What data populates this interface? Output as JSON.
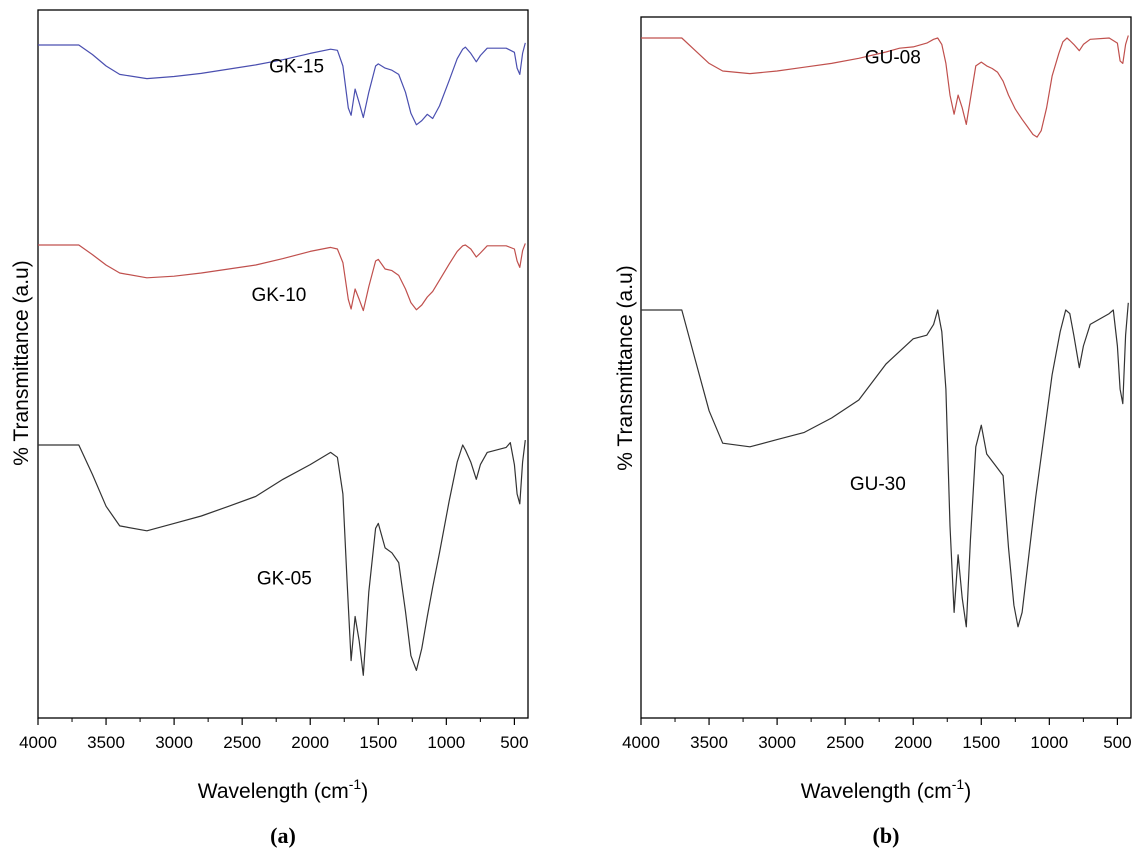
{
  "chart_data": [
    {
      "type": "line",
      "panel_label": "(a)",
      "xlabel": "Wavelength (cm",
      "xlabel_sup": "-1",
      "xlabel_suffix": ")",
      "ylabel": "% Transmittance (a.u)",
      "xlim": [
        4000,
        400
      ],
      "x_reversed": true,
      "xticks": [
        4000,
        3500,
        3000,
        2500,
        2000,
        1500,
        1000,
        500
      ],
      "yticks_shown": false,
      "grid": false,
      "colors": {
        "GK-15": "#4a4fb0",
        "GK-10": "#c0504d",
        "GK-05": "#333333"
      },
      "series": [
        {
          "name": "GK-15",
          "label": "GK-15",
          "color": "#4a4fb0",
          "label_at": [
            2100,
            0.74
          ],
          "points": [
            [
              4000,
              1.0
            ],
            [
              3700,
              1.0
            ],
            [
              3600,
              0.91
            ],
            [
              3500,
              0.8
            ],
            [
              3400,
              0.72
            ],
            [
              3200,
              0.68
            ],
            [
              3000,
              0.7
            ],
            [
              2800,
              0.73
            ],
            [
              2600,
              0.77
            ],
            [
              2400,
              0.81
            ],
            [
              2200,
              0.86
            ],
            [
              2000,
              0.92
            ],
            [
              1850,
              0.96
            ],
            [
              1800,
              0.95
            ],
            [
              1760,
              0.8
            ],
            [
              1720,
              0.4
            ],
            [
              1700,
              0.33
            ],
            [
              1670,
              0.58
            ],
            [
              1640,
              0.45
            ],
            [
              1610,
              0.31
            ],
            [
              1570,
              0.55
            ],
            [
              1520,
              0.8
            ],
            [
              1500,
              0.82
            ],
            [
              1450,
              0.78
            ],
            [
              1400,
              0.76
            ],
            [
              1350,
              0.72
            ],
            [
              1300,
              0.55
            ],
            [
              1260,
              0.35
            ],
            [
              1220,
              0.24
            ],
            [
              1180,
              0.28
            ],
            [
              1140,
              0.34
            ],
            [
              1100,
              0.3
            ],
            [
              1050,
              0.42
            ],
            [
              980,
              0.66
            ],
            [
              920,
              0.87
            ],
            [
              880,
              0.96
            ],
            [
              860,
              0.98
            ],
            [
              820,
              0.92
            ],
            [
              780,
              0.84
            ],
            [
              750,
              0.9
            ],
            [
              700,
              0.97
            ],
            [
              560,
              0.97
            ],
            [
              500,
              0.93
            ],
            [
              480,
              0.78
            ],
            [
              460,
              0.72
            ],
            [
              440,
              0.92
            ],
            [
              420,
              1.02
            ]
          ]
        },
        {
          "name": "GK-10",
          "label": "GK-10",
          "color": "#c0504d",
          "label_at": [
            2230,
            0.3
          ],
          "points": [
            [
              4000,
              1.0
            ],
            [
              3700,
              1.0
            ],
            [
              3600,
              0.88
            ],
            [
              3500,
              0.75
            ],
            [
              3400,
              0.65
            ],
            [
              3200,
              0.59
            ],
            [
              3000,
              0.61
            ],
            [
              2800,
              0.65
            ],
            [
              2600,
              0.7
            ],
            [
              2400,
              0.75
            ],
            [
              2200,
              0.83
            ],
            [
              2000,
              0.92
            ],
            [
              1850,
              0.97
            ],
            [
              1800,
              0.95
            ],
            [
              1760,
              0.78
            ],
            [
              1720,
              0.32
            ],
            [
              1700,
              0.2
            ],
            [
              1670,
              0.45
            ],
            [
              1640,
              0.32
            ],
            [
              1610,
              0.18
            ],
            [
              1570,
              0.48
            ],
            [
              1520,
              0.8
            ],
            [
              1500,
              0.82
            ],
            [
              1450,
              0.7
            ],
            [
              1400,
              0.68
            ],
            [
              1350,
              0.62
            ],
            [
              1300,
              0.45
            ],
            [
              1260,
              0.28
            ],
            [
              1220,
              0.19
            ],
            [
              1180,
              0.25
            ],
            [
              1140,
              0.35
            ],
            [
              1100,
              0.42
            ],
            [
              1050,
              0.56
            ],
            [
              980,
              0.76
            ],
            [
              920,
              0.92
            ],
            [
              880,
              0.99
            ],
            [
              860,
              1.0
            ],
            [
              820,
              0.95
            ],
            [
              780,
              0.85
            ],
            [
              750,
              0.9
            ],
            [
              700,
              0.99
            ],
            [
              560,
              0.99
            ],
            [
              500,
              0.95
            ],
            [
              480,
              0.8
            ],
            [
              460,
              0.72
            ],
            [
              440,
              0.93
            ],
            [
              420,
              1.02
            ]
          ]
        },
        {
          "name": "GK-05",
          "label": "GK-05",
          "color": "#333333",
          "label_at": [
            2190,
            0.43
          ],
          "points": [
            [
              4000,
              1.0
            ],
            [
              3700,
              1.0
            ],
            [
              3600,
              0.88
            ],
            [
              3500,
              0.75
            ],
            [
              3400,
              0.67
            ],
            [
              3200,
              0.65
            ],
            [
              3000,
              0.68
            ],
            [
              2800,
              0.71
            ],
            [
              2600,
              0.75
            ],
            [
              2400,
              0.79
            ],
            [
              2200,
              0.86
            ],
            [
              2000,
              0.92
            ],
            [
              1850,
              0.97
            ],
            [
              1800,
              0.95
            ],
            [
              1760,
              0.8
            ],
            [
              1730,
              0.45
            ],
            [
              1700,
              0.12
            ],
            [
              1670,
              0.3
            ],
            [
              1640,
              0.2
            ],
            [
              1610,
              0.06
            ],
            [
              1570,
              0.4
            ],
            [
              1520,
              0.66
            ],
            [
              1500,
              0.68
            ],
            [
              1450,
              0.58
            ],
            [
              1400,
              0.56
            ],
            [
              1350,
              0.52
            ],
            [
              1300,
              0.32
            ],
            [
              1260,
              0.14
            ],
            [
              1220,
              0.08
            ],
            [
              1180,
              0.17
            ],
            [
              1140,
              0.3
            ],
            [
              1100,
              0.42
            ],
            [
              1050,
              0.56
            ],
            [
              980,
              0.77
            ],
            [
              920,
              0.93
            ],
            [
              880,
              1.0
            ],
            [
              860,
              0.98
            ],
            [
              820,
              0.93
            ],
            [
              780,
              0.86
            ],
            [
              750,
              0.92
            ],
            [
              700,
              0.97
            ],
            [
              560,
              0.99
            ],
            [
              530,
              1.01
            ],
            [
              500,
              0.92
            ],
            [
              480,
              0.8
            ],
            [
              460,
              0.76
            ],
            [
              440,
              0.93
            ],
            [
              420,
              1.02
            ]
          ]
        }
      ]
    },
    {
      "type": "line",
      "panel_label": "(b)",
      "xlabel": "Wavelength (cm",
      "xlabel_sup": "-1",
      "xlabel_suffix": ")",
      "ylabel": "% Transmittance (a.u)",
      "xlim": [
        4000,
        400
      ],
      "x_reversed": true,
      "xticks": [
        4000,
        3500,
        3000,
        2500,
        2000,
        1500,
        1000,
        500
      ],
      "yticks_shown": false,
      "grid": false,
      "colors": {
        "GU-08": "#c0504d",
        "GU-30": "#333333"
      },
      "series": [
        {
          "name": "GU-08",
          "label": "GU-08",
          "color": "#c0504d",
          "label_at": [
            2150,
            0.8
          ],
          "points": [
            [
              4000,
              1.0
            ],
            [
              3700,
              1.0
            ],
            [
              3600,
              0.9
            ],
            [
              3500,
              0.8
            ],
            [
              3400,
              0.74
            ],
            [
              3200,
              0.72
            ],
            [
              3000,
              0.74
            ],
            [
              2800,
              0.77
            ],
            [
              2600,
              0.8
            ],
            [
              2400,
              0.84
            ],
            [
              2200,
              0.89
            ],
            [
              2100,
              0.92
            ],
            [
              2000,
              0.93
            ],
            [
              1900,
              0.96
            ],
            [
              1850,
              0.99
            ],
            [
              1820,
              1.0
            ],
            [
              1790,
              0.95
            ],
            [
              1760,
              0.8
            ],
            [
              1730,
              0.55
            ],
            [
              1700,
              0.4
            ],
            [
              1670,
              0.55
            ],
            [
              1640,
              0.45
            ],
            [
              1610,
              0.32
            ],
            [
              1580,
              0.52
            ],
            [
              1540,
              0.78
            ],
            [
              1500,
              0.81
            ],
            [
              1460,
              0.78
            ],
            [
              1420,
              0.76
            ],
            [
              1380,
              0.73
            ],
            [
              1340,
              0.66
            ],
            [
              1300,
              0.55
            ],
            [
              1250,
              0.44
            ],
            [
              1200,
              0.36
            ],
            [
              1160,
              0.3
            ],
            [
              1120,
              0.24
            ],
            [
              1090,
              0.22
            ],
            [
              1060,
              0.27
            ],
            [
              1020,
              0.45
            ],
            [
              980,
              0.7
            ],
            [
              930,
              0.88
            ],
            [
              900,
              0.97
            ],
            [
              870,
              1.0
            ],
            [
              850,
              0.98
            ],
            [
              820,
              0.95
            ],
            [
              780,
              0.9
            ],
            [
              750,
              0.95
            ],
            [
              700,
              0.99
            ],
            [
              560,
              1.0
            ],
            [
              500,
              0.96
            ],
            [
              480,
              0.82
            ],
            [
              460,
              0.8
            ],
            [
              440,
              0.95
            ],
            [
              420,
              1.02
            ]
          ]
        },
        {
          "name": "GU-30",
          "label": "GU-30",
          "color": "#333333",
          "label_at": [
            2260,
            0.5
          ],
          "points": [
            [
              4000,
              1.0
            ],
            [
              3700,
              1.0
            ],
            [
              3600,
              0.86
            ],
            [
              3500,
              0.72
            ],
            [
              3400,
              0.63
            ],
            [
              3200,
              0.62
            ],
            [
              3000,
              0.64
            ],
            [
              2800,
              0.66
            ],
            [
              2600,
              0.7
            ],
            [
              2400,
              0.75
            ],
            [
              2200,
              0.85
            ],
            [
              2000,
              0.92
            ],
            [
              1900,
              0.93
            ],
            [
              1850,
              0.96
            ],
            [
              1820,
              1.0
            ],
            [
              1790,
              0.94
            ],
            [
              1760,
              0.78
            ],
            [
              1730,
              0.4
            ],
            [
              1700,
              0.16
            ],
            [
              1670,
              0.32
            ],
            [
              1640,
              0.2
            ],
            [
              1610,
              0.12
            ],
            [
              1580,
              0.36
            ],
            [
              1540,
              0.62
            ],
            [
              1500,
              0.68
            ],
            [
              1460,
              0.6
            ],
            [
              1400,
              0.57
            ],
            [
              1340,
              0.54
            ],
            [
              1300,
              0.34
            ],
            [
              1260,
              0.18
            ],
            [
              1230,
              0.12
            ],
            [
              1200,
              0.16
            ],
            [
              1150,
              0.32
            ],
            [
              1100,
              0.48
            ],
            [
              1050,
              0.62
            ],
            [
              980,
              0.82
            ],
            [
              920,
              0.94
            ],
            [
              880,
              1.0
            ],
            [
              850,
              0.99
            ],
            [
              820,
              0.93
            ],
            [
              780,
              0.84
            ],
            [
              750,
              0.9
            ],
            [
              700,
              0.96
            ],
            [
              560,
              0.99
            ],
            [
              530,
              1.0
            ],
            [
              500,
              0.9
            ],
            [
              480,
              0.78
            ],
            [
              460,
              0.74
            ],
            [
              440,
              0.93
            ],
            [
              420,
              1.02
            ]
          ]
        }
      ]
    }
  ]
}
